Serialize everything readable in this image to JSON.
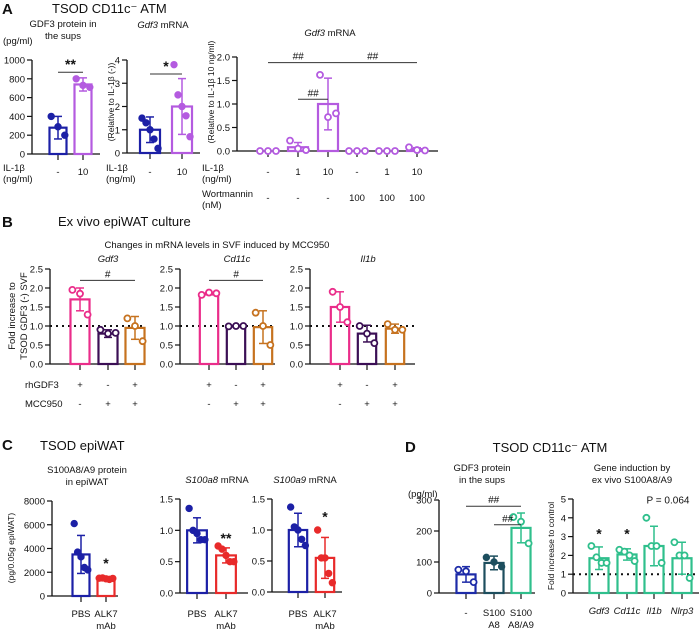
{
  "panels": {
    "A": {
      "label": "A",
      "title": "TSOD CD11c⁻ ATM"
    },
    "B": {
      "label": "B",
      "title": "Ex vivo epiWAT culture",
      "subtitle": "Changes in mRNA levels in SVF induced by MCC950",
      "ylabel_line1": "Fold increase to",
      "ylabel_line2": "TSOD GDF3 (-) SVF"
    },
    "C": {
      "label": "C",
      "title": "TSOD epiWAT"
    },
    "D": {
      "label": "D",
      "title": "TSOD CD11c⁻ ATM"
    }
  },
  "colors": {
    "A_blue": "#1c20a6",
    "A_purple": "#b45be0",
    "pink": "#ea2d8a",
    "dark_purple": "#3b0f55",
    "orange": "#c6721f",
    "red": "#e82a2a",
    "D_blue": "#1d2ba8",
    "D_teal": "#1d4e5e",
    "green": "#2fbf8c"
  },
  "chart_data": [
    {
      "id": "A1",
      "type": "bar",
      "title_line1": "GDF3 protein in",
      "title_line2": "the sups",
      "ylabel": "(pg/ml)",
      "ylim": [
        0,
        1000
      ],
      "yticks": [
        0,
        200,
        400,
        600,
        800,
        1000
      ],
      "rows": [
        {
          "label": "IL-1β\n(ng/ml)",
          "values": [
            "-",
            "10"
          ]
        }
      ],
      "bars": [
        {
          "mean": 280,
          "sd": 120,
          "color": "#1c20a6",
          "marker": "filled",
          "points": [
            400,
            290,
            200
          ]
        },
        {
          "mean": 740,
          "sd": 70,
          "color": "#b45be0",
          "marker": "filled",
          "points": [
            800,
            730,
            710
          ]
        }
      ],
      "annotations": [
        {
          "text": "**",
          "from": 0,
          "to": 1,
          "y": 870
        }
      ]
    },
    {
      "id": "A2",
      "type": "bar",
      "title_gene": "Gdf3",
      "title_rest": " mRNA",
      "ylabel": "(Relative to IL-1β (-))",
      "ylim": [
        0,
        4
      ],
      "yticks": [
        0,
        1,
        2,
        3,
        4
      ],
      "rows": [
        {
          "label": "IL-1β\n(ng/ml)",
          "values": [
            "-",
            "10"
          ]
        }
      ],
      "bars": [
        {
          "mean": 1.0,
          "sd": 0.55,
          "color": "#1c20a6",
          "marker": "filled",
          "points": [
            1.5,
            1.3,
            1.0,
            0.6,
            0.2
          ]
        },
        {
          "mean": 2.0,
          "sd": 1.2,
          "color": "#b45be0",
          "marker": "filled",
          "points": [
            3.8,
            2.5,
            2.0,
            1.6,
            0.7
          ]
        }
      ],
      "annotations": [
        {
          "text": "*",
          "from": 0,
          "to": 1,
          "y": 3.4
        }
      ]
    },
    {
      "id": "A3",
      "type": "bar",
      "title_gene": "Gdf3",
      "title_rest": " mRNA",
      "ylabel": "(Relative to IL-1β 10 ng/ml)",
      "ylim": [
        0,
        2.0
      ],
      "yticks": [
        "0.0",
        "0.5",
        "1.0",
        "1.5",
        "2.0"
      ],
      "rows": [
        {
          "label": "IL-1β\n(ng/ml)",
          "values": [
            "-",
            "1",
            "10",
            "-",
            "1",
            "10"
          ]
        },
        {
          "label": "Wortmannin\n(nM)",
          "values": [
            "-",
            "-",
            "-",
            "100",
            "100",
            "100"
          ]
        }
      ],
      "bars": [
        {
          "mean": 0,
          "sd": 0,
          "color": "#b45be0",
          "marker": "open",
          "points": [
            0,
            0,
            0
          ]
        },
        {
          "mean": 0.08,
          "sd": 0.1,
          "color": "#b45be0",
          "marker": "open",
          "points": [
            0.22,
            0.05,
            0.02
          ]
        },
        {
          "mean": 1.0,
          "sd": 0.55,
          "color": "#b45be0",
          "marker": "open",
          "points": [
            1.62,
            0.72,
            0.8
          ]
        },
        {
          "mean": 0,
          "sd": 0,
          "color": "#b45be0",
          "marker": "open",
          "points": [
            0,
            0,
            0
          ]
        },
        {
          "mean": 0,
          "sd": 0,
          "color": "#b45be0",
          "marker": "open",
          "points": [
            0,
            0,
            0
          ]
        },
        {
          "mean": 0.04,
          "sd": 0.03,
          "color": "#b45be0",
          "marker": "open",
          "points": [
            0.08,
            0.02,
            0.01
          ]
        }
      ],
      "annotations": [
        {
          "text": "##",
          "from": 0,
          "to": 2,
          "y": 1.88
        },
        {
          "text": "##",
          "from": 2,
          "to": 5,
          "y": 1.88
        },
        {
          "text": "##",
          "from": 1,
          "to": 2,
          "y": 1.1
        }
      ]
    },
    {
      "id": "B1",
      "type": "bar",
      "title_gene": "Gdf3",
      "ylim": [
        0,
        2.5
      ],
      "yticks": [
        "0.0",
        "0.5",
        "1.0",
        "1.5",
        "2.0",
        "2.5"
      ],
      "reference_line": 1.0,
      "rows": [
        {
          "label": "rhGDF3",
          "values": [
            "+",
            "-",
            "+"
          ]
        },
        {
          "label": "MCC950",
          "values": [
            "-",
            "+",
            "+"
          ]
        }
      ],
      "bars": [
        {
          "mean": 1.7,
          "sd": 0.3,
          "color": "#ea2d8a",
          "marker": "open",
          "points": [
            1.95,
            1.85,
            1.3
          ]
        },
        {
          "mean": 0.8,
          "sd": 0.1,
          "color": "#3b0f55",
          "marker": "open",
          "points": [
            0.9,
            0.8,
            0.82
          ]
        },
        {
          "mean": 0.95,
          "sd": 0.3,
          "color": "#c6721f",
          "marker": "open",
          "points": [
            1.2,
            1.0,
            0.6
          ]
        }
      ],
      "annotations": [
        {
          "text": "#",
          "from": 0,
          "to": 2,
          "y": 2.2
        }
      ]
    },
    {
      "id": "B2",
      "type": "bar",
      "title_gene": "Cd11c",
      "ylim": [
        0,
        2.5
      ],
      "yticks": [
        "0.0",
        "0.5",
        "1.0",
        "1.5",
        "2.0",
        "2.5"
      ],
      "reference_line": 1.0,
      "rows": [
        {
          "label": "",
          "values": [
            "+",
            "-",
            "+"
          ]
        },
        {
          "label": "",
          "values": [
            "-",
            "+",
            "+"
          ]
        }
      ],
      "bars": [
        {
          "mean": 1.85,
          "sd": 0.03,
          "color": "#ea2d8a",
          "marker": "open",
          "points": [
            1.82,
            1.88,
            1.86
          ]
        },
        {
          "mean": 1.0,
          "sd": 0.01,
          "color": "#3b0f55",
          "marker": "open",
          "points": [
            0.99,
            1.0,
            1.0
          ]
        },
        {
          "mean": 0.97,
          "sd": 0.43,
          "color": "#c6721f",
          "marker": "open",
          "points": [
            1.35,
            1.0,
            0.5
          ]
        }
      ],
      "annotations": [
        {
          "text": "#",
          "from": 0,
          "to": 2,
          "y": 2.2
        }
      ]
    },
    {
      "id": "B3",
      "type": "bar",
      "title_gene": "Il1b",
      "ylim": [
        0,
        2.5
      ],
      "yticks": [
        "0.0",
        "0.5",
        "1.0",
        "1.5",
        "2.0",
        "2.5"
      ],
      "reference_line": 1.0,
      "rows": [
        {
          "label": "",
          "values": [
            "+",
            "-",
            "+"
          ]
        },
        {
          "label": "",
          "values": [
            "-",
            "+",
            "+"
          ]
        }
      ],
      "bars": [
        {
          "mean": 1.5,
          "sd": 0.4,
          "color": "#ea2d8a",
          "marker": "open",
          "points": [
            1.9,
            1.5,
            1.1
          ]
        },
        {
          "mean": 0.8,
          "sd": 0.22,
          "color": "#3b0f55",
          "marker": "open",
          "points": [
            1.0,
            0.8,
            0.55
          ]
        },
        {
          "mean": 0.93,
          "sd": 0.12,
          "color": "#c6721f",
          "marker": "open",
          "points": [
            1.05,
            0.9,
            0.9
          ]
        }
      ],
      "annotations": []
    },
    {
      "id": "C1",
      "type": "bar",
      "title_line1": "S100A8/A9 protein",
      "title_line2": "in epiWAT",
      "ylabel": "(pg/0.05g epiWAT)",
      "ylim": [
        0,
        8000
      ],
      "yticks": [
        0,
        2000,
        4000,
        6000,
        8000
      ],
      "categories": [
        "PBS",
        "ALK7\nmAb"
      ],
      "bars": [
        {
          "mean": 3500,
          "sd": 1600,
          "color": "#1c20a6",
          "marker": "filled",
          "points": [
            6100,
            3700,
            3300,
            2400,
            2200
          ]
        },
        {
          "mean": 1450,
          "sd": 100,
          "color": "#e82a2a",
          "marker": "filled",
          "points": [
            1500,
            1520,
            1450,
            1400,
            1480
          ]
        }
      ],
      "annotations": [
        {
          "text": "*",
          "from": 1,
          "to": 1,
          "y": 2700
        }
      ]
    },
    {
      "id": "C2",
      "type": "bar",
      "title_gene": "S100a8",
      "title_rest": " mRNA",
      "ylim": [
        0,
        1.5
      ],
      "yticks": [
        "0.0",
        "0.5",
        "1.0",
        "1.5"
      ],
      "categories": [
        "PBS",
        "ALK7\nmAb"
      ],
      "bars": [
        {
          "mean": 1.0,
          "sd": 0.2,
          "color": "#1c20a6",
          "marker": "filled",
          "points": [
            1.35,
            1.0,
            0.95,
            0.85,
            0.85
          ]
        },
        {
          "mean": 0.6,
          "sd": 0.12,
          "color": "#e82a2a",
          "marker": "filled",
          "points": [
            0.75,
            0.7,
            0.6,
            0.5,
            0.5
          ]
        }
      ],
      "annotations": [
        {
          "text": "**",
          "from": 1,
          "to": 1,
          "y": 0.86
        }
      ]
    },
    {
      "id": "C3",
      "type": "bar",
      "title_gene": "S100a9",
      "title_rest": " mRNA",
      "ylim": [
        0,
        1.5
      ],
      "yticks": [
        "0.0",
        "0.5",
        "1.0",
        "1.5"
      ],
      "categories": [
        "PBS",
        "ALK7\nmAb"
      ],
      "bars": [
        {
          "mean": 1.0,
          "sd": 0.27,
          "color": "#1c20a6",
          "marker": "filled",
          "points": [
            1.37,
            1.05,
            1.0,
            0.85,
            0.75
          ]
        },
        {
          "mean": 0.55,
          "sd": 0.33,
          "color": "#e82a2a",
          "marker": "filled",
          "points": [
            1.0,
            0.55,
            0.55,
            0.3,
            0.15
          ]
        }
      ],
      "annotations": [
        {
          "text": "*",
          "from": 1,
          "to": 1,
          "y": 1.2
        }
      ]
    },
    {
      "id": "D1",
      "type": "bar",
      "title_line1": "GDF3 protein",
      "title_line2": "in the sups",
      "ylabel": "(pg/ml)",
      "ylim": [
        0,
        300
      ],
      "yticks": [
        0,
        100,
        200,
        300
      ],
      "categories": [
        "-",
        "S100\nA8",
        "S100\nA8/A9"
      ],
      "bars": [
        {
          "mean": 60,
          "sd": 25,
          "color": "#1d2ba8",
          "marker": "open",
          "points": [
            75,
            70,
            35
          ]
        },
        {
          "mean": 97,
          "sd": 22,
          "color": "#1d4e5e",
          "marker": "filled",
          "points": [
            115,
            100,
            85
          ]
        },
        {
          "mean": 210,
          "sd": 48,
          "color": "#2fbf8c",
          "marker": "open",
          "points": [
            245,
            230,
            160
          ]
        }
      ],
      "annotations": [
        {
          "text": "##",
          "from": 0,
          "to": 2,
          "y": 280
        },
        {
          "text": "##",
          "from": 1,
          "to": 2,
          "y": 220
        }
      ]
    },
    {
      "id": "D2",
      "type": "bar",
      "title_line1": "Gene induction by",
      "title_line2": "ex vivo S100A8/A9",
      "ylabel": "Fold increase to control",
      "ylim": [
        0,
        5
      ],
      "yticks": [
        0,
        1,
        2,
        3,
        4,
        5
      ],
      "reference_line": 1,
      "categories_italic": true,
      "categories": [
        "Gdf3",
        "Cd11c",
        "Il1b",
        "Nlrp3"
      ],
      "bars": [
        {
          "mean": 1.85,
          "sd": 0.6,
          "color": "#2fbf8c",
          "marker": "open",
          "points": [
            2.5,
            1.9,
            1.6,
            1.6
          ]
        },
        {
          "mean": 2.05,
          "sd": 0.3,
          "color": "#2fbf8c",
          "marker": "open",
          "points": [
            2.3,
            2.2,
            2.0,
            1.7
          ]
        },
        {
          "mean": 2.5,
          "sd": 1.05,
          "color": "#2fbf8c",
          "marker": "open",
          "points": [
            4.0,
            2.5,
            2.5,
            1.6
          ]
        },
        {
          "mean": 1.85,
          "sd": 0.85,
          "color": "#2fbf8c",
          "marker": "open",
          "points": [
            2.7,
            2.0,
            2.0,
            0.8
          ]
        }
      ],
      "annotations": [
        {
          "text": "*",
          "from": 0,
          "to": 0,
          "y": 3.1
        },
        {
          "text": "*",
          "from": 1,
          "to": 1,
          "y": 3.1
        },
        {
          "text": "P = 0.064",
          "from": 2,
          "to": 3,
          "y": 4.6,
          "italic_prefix": true
        }
      ]
    }
  ]
}
